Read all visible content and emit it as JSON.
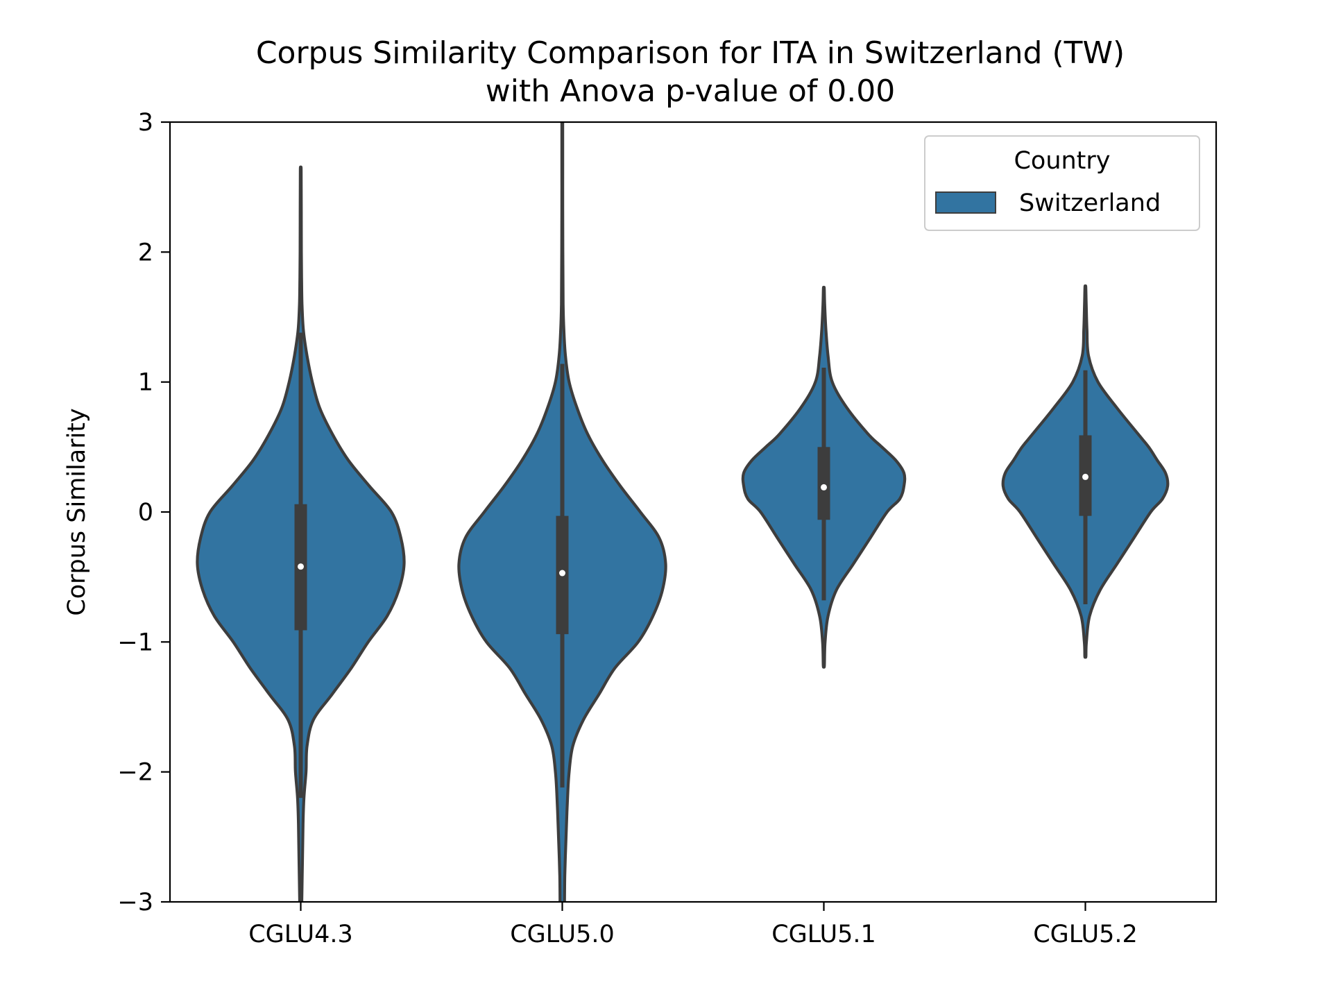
{
  "chart_data": {
    "type": "violin",
    "title_line1": "Corpus Similarity Comparison for ITA in Switzerland (TW)",
    "title_line2": "with Anova p-value of 0.00",
    "xlabel": "",
    "ylabel": "Corpus Similarity",
    "ylim": [
      -3,
      3
    ],
    "yticks": [
      -3,
      -2,
      -1,
      0,
      1,
      2,
      3
    ],
    "ytick_labels": [
      "−3",
      "−2",
      "−1",
      "0",
      "1",
      "2",
      "3"
    ],
    "categories": [
      "CGLU4.3",
      "CGLU5.0",
      "CGLU5.1",
      "CGLU5.2"
    ],
    "legend": {
      "title": "Country",
      "entries": [
        "Switzerland"
      ],
      "placement": "top-right"
    },
    "colors": {
      "fill": "#3274a1",
      "outline": "#3d3d3d",
      "box": "#3d3d3d",
      "median": "#ffffff"
    },
    "series": [
      {
        "category": "CGLU4.3",
        "min": -3.2,
        "whisker_low": -2.2,
        "q1": -0.91,
        "median": -0.42,
        "q3": 0.06,
        "whisker_high": 1.38,
        "max": 2.63,
        "profile": [
          [
            -3.2,
            0.005
          ],
          [
            -2.8,
            0.014
          ],
          [
            -2.4,
            0.022
          ],
          [
            -2.2,
            0.03
          ],
          [
            -2.0,
            0.05
          ],
          [
            -1.8,
            0.06
          ],
          [
            -1.6,
            0.12
          ],
          [
            -1.4,
            0.3
          ],
          [
            -1.2,
            0.48
          ],
          [
            -1.0,
            0.64
          ],
          [
            -0.8,
            0.82
          ],
          [
            -0.6,
            0.93
          ],
          [
            -0.4,
            0.98
          ],
          [
            -0.2,
            0.95
          ],
          [
            0.0,
            0.86
          ],
          [
            0.2,
            0.65
          ],
          [
            0.4,
            0.45
          ],
          [
            0.6,
            0.3
          ],
          [
            0.8,
            0.18
          ],
          [
            1.0,
            0.11
          ],
          [
            1.2,
            0.06
          ],
          [
            1.4,
            0.025
          ],
          [
            1.6,
            0.012
          ],
          [
            1.8,
            0.008
          ],
          [
            2.0,
            0.006
          ],
          [
            2.3,
            0.005
          ],
          [
            2.63,
            0.004
          ]
        ]
      },
      {
        "category": "CGLU5.0",
        "min": -3.2,
        "whisker_low": -2.12,
        "q1": -0.94,
        "median": -0.47,
        "q3": -0.03,
        "whisker_high": 1.14,
        "max": 3.0,
        "profile": [
          [
            -3.2,
            0.018
          ],
          [
            -2.8,
            0.024
          ],
          [
            -2.4,
            0.04
          ],
          [
            -2.2,
            0.05
          ],
          [
            -2.0,
            0.065
          ],
          [
            -1.8,
            0.1
          ],
          [
            -1.6,
            0.2
          ],
          [
            -1.4,
            0.35
          ],
          [
            -1.2,
            0.5
          ],
          [
            -1.0,
            0.72
          ],
          [
            -0.8,
            0.86
          ],
          [
            -0.6,
            0.95
          ],
          [
            -0.4,
            0.98
          ],
          [
            -0.2,
            0.92
          ],
          [
            0.0,
            0.74
          ],
          [
            0.2,
            0.55
          ],
          [
            0.4,
            0.38
          ],
          [
            0.6,
            0.24
          ],
          [
            0.8,
            0.14
          ],
          [
            1.0,
            0.065
          ],
          [
            1.2,
            0.03
          ],
          [
            1.4,
            0.015
          ],
          [
            1.6,
            0.008
          ],
          [
            2.0,
            0.005
          ],
          [
            2.5,
            0.004
          ],
          [
            3.0,
            0.004
          ]
        ]
      },
      {
        "category": "CGLU5.1",
        "min": -1.18,
        "whisker_low": -0.68,
        "q1": -0.06,
        "median": 0.19,
        "q3": 0.5,
        "whisker_high": 1.11,
        "max": 1.72,
        "profile": [
          [
            -1.18,
            0.005
          ],
          [
            -1.0,
            0.012
          ],
          [
            -0.8,
            0.04
          ],
          [
            -0.6,
            0.12
          ],
          [
            -0.4,
            0.28
          ],
          [
            -0.2,
            0.44
          ],
          [
            0.0,
            0.6
          ],
          [
            0.1,
            0.72
          ],
          [
            0.2,
            0.76
          ],
          [
            0.3,
            0.76
          ],
          [
            0.4,
            0.68
          ],
          [
            0.5,
            0.55
          ],
          [
            0.6,
            0.42
          ],
          [
            0.8,
            0.22
          ],
          [
            1.0,
            0.08
          ],
          [
            1.2,
            0.04
          ],
          [
            1.4,
            0.02
          ],
          [
            1.6,
            0.008
          ],
          [
            1.72,
            0.004
          ]
        ]
      },
      {
        "category": "CGLU5.2",
        "min": -1.11,
        "whisker_low": -0.71,
        "q1": -0.03,
        "median": 0.27,
        "q3": 0.59,
        "whisker_high": 1.09,
        "max": 1.73,
        "profile": [
          [
            -1.11,
            0.005
          ],
          [
            -1.0,
            0.01
          ],
          [
            -0.8,
            0.04
          ],
          [
            -0.6,
            0.14
          ],
          [
            -0.4,
            0.3
          ],
          [
            -0.2,
            0.46
          ],
          [
            0.0,
            0.62
          ],
          [
            0.1,
            0.73
          ],
          [
            0.2,
            0.78
          ],
          [
            0.3,
            0.76
          ],
          [
            0.4,
            0.68
          ],
          [
            0.5,
            0.6
          ],
          [
            0.6,
            0.5
          ],
          [
            0.8,
            0.3
          ],
          [
            1.0,
            0.12
          ],
          [
            1.2,
            0.03
          ],
          [
            1.4,
            0.015
          ],
          [
            1.6,
            0.008
          ],
          [
            1.73,
            0.004
          ]
        ]
      }
    ]
  }
}
